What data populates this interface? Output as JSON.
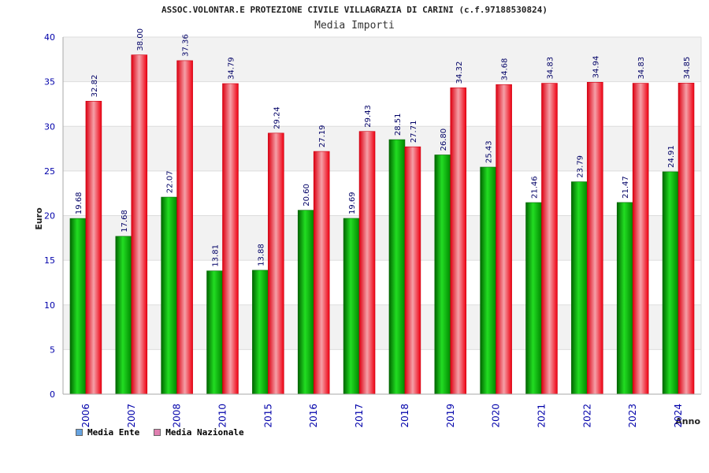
{
  "chart_data": {
    "type": "bar",
    "title": "ASSOC.VOLONTAR.E PROTEZIONE CIVILE VILLAGRAZIA DI CARINI (c.f.97188530824)",
    "subtitle": "Media Importi",
    "xlabel": "Anno",
    "ylabel": "Euro",
    "ylim": [
      0,
      40
    ],
    "yticks": [
      "0",
      "5",
      "10",
      "15",
      "20",
      "25",
      "30",
      "35",
      "40"
    ],
    "grid": true,
    "legend_position": "bottom-left",
    "categories": [
      "2006",
      "2007",
      "2008",
      "2010",
      "2015",
      "2016",
      "2017",
      "2018",
      "2019",
      "2020",
      "2021",
      "2022",
      "2023",
      "2024"
    ],
    "series": [
      {
        "name": "Media Ente",
        "color": "#00cc00",
        "legend_color": "#66a3e0",
        "values": [
          19.68,
          17.68,
          22.07,
          13.81,
          13.88,
          20.6,
          19.69,
          28.51,
          26.8,
          25.43,
          21.46,
          23.79,
          21.47,
          24.91
        ],
        "labels": [
          "19.68",
          "17.68",
          "22.07",
          "13.81",
          "13.88",
          "20.60",
          "19.69",
          "28.51",
          "26.80",
          "25.43",
          "21.46",
          "23.79",
          "21.47",
          "24.91"
        ]
      },
      {
        "name": "Media Nazionale",
        "color": "#ee1122",
        "legend_color": "#e080b0",
        "values": [
          32.82,
          38.0,
          37.36,
          34.79,
          29.24,
          27.19,
          29.43,
          27.71,
          34.32,
          34.68,
          34.83,
          34.94,
          34.83,
          34.85
        ],
        "labels": [
          "32.82",
          "38.00",
          "37.36",
          "34.79",
          "29.24",
          "27.19",
          "29.43",
          "27.71",
          "34.32",
          "34.68",
          "34.83",
          "34.94",
          "34.83",
          "34.85"
        ]
      }
    ]
  }
}
